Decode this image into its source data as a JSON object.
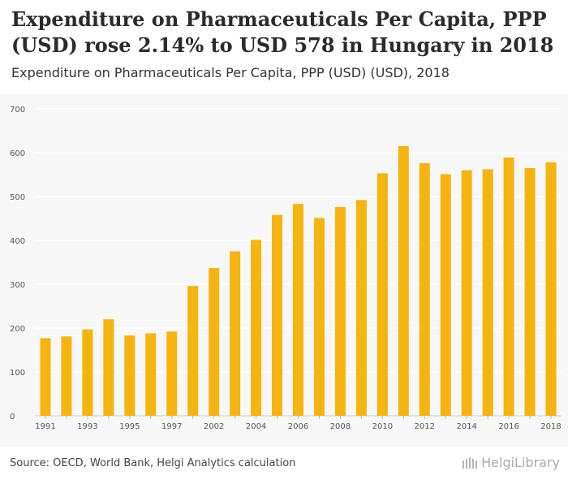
{
  "title": "Expenditure on Pharmaceuticals Per Capita, PPP (USD) rose 2.14% to USD 578 in Hungary in 2018",
  "subtitle": "Expenditure on Pharmaceuticals Per Capita, PPP (USD) (USD), 2018",
  "source": "Source: OECD, World Bank, Helgi Analytics calculation",
  "logo_text": "HelgiLibrary",
  "colors": {
    "bar": "#f5b40f",
    "background": "#f7f7f7",
    "grid": "#ffffff"
  },
  "chart_data": {
    "type": "bar",
    "categories": [
      "1991",
      "1992",
      "1993",
      "1994",
      "1995",
      "1996",
      "1997",
      "1998",
      "2002",
      "2003",
      "2004",
      "2005",
      "2006",
      "2007",
      "2008",
      "2009",
      "2010",
      "2011",
      "2012",
      "2013",
      "2014",
      "2015",
      "2016",
      "2017",
      "2018"
    ],
    "tick_labels": [
      "1991",
      "",
      "1993",
      "",
      "1995",
      "",
      "1997",
      "",
      "2002",
      "",
      "2004",
      "",
      "2006",
      "",
      "2008",
      "",
      "2010",
      "",
      "2012",
      "",
      "2014",
      "",
      "2016",
      "",
      "2018"
    ],
    "values": [
      177,
      181,
      197,
      220,
      183,
      188,
      192,
      296,
      337,
      375,
      401,
      458,
      483,
      451,
      476,
      492,
      553,
      615,
      576,
      551,
      560,
      562,
      589,
      565,
      578
    ],
    "y_ticks": [
      0,
      100,
      200,
      300,
      400,
      500,
      600,
      700
    ],
    "ylim": [
      0,
      700
    ],
    "grid": true
  }
}
